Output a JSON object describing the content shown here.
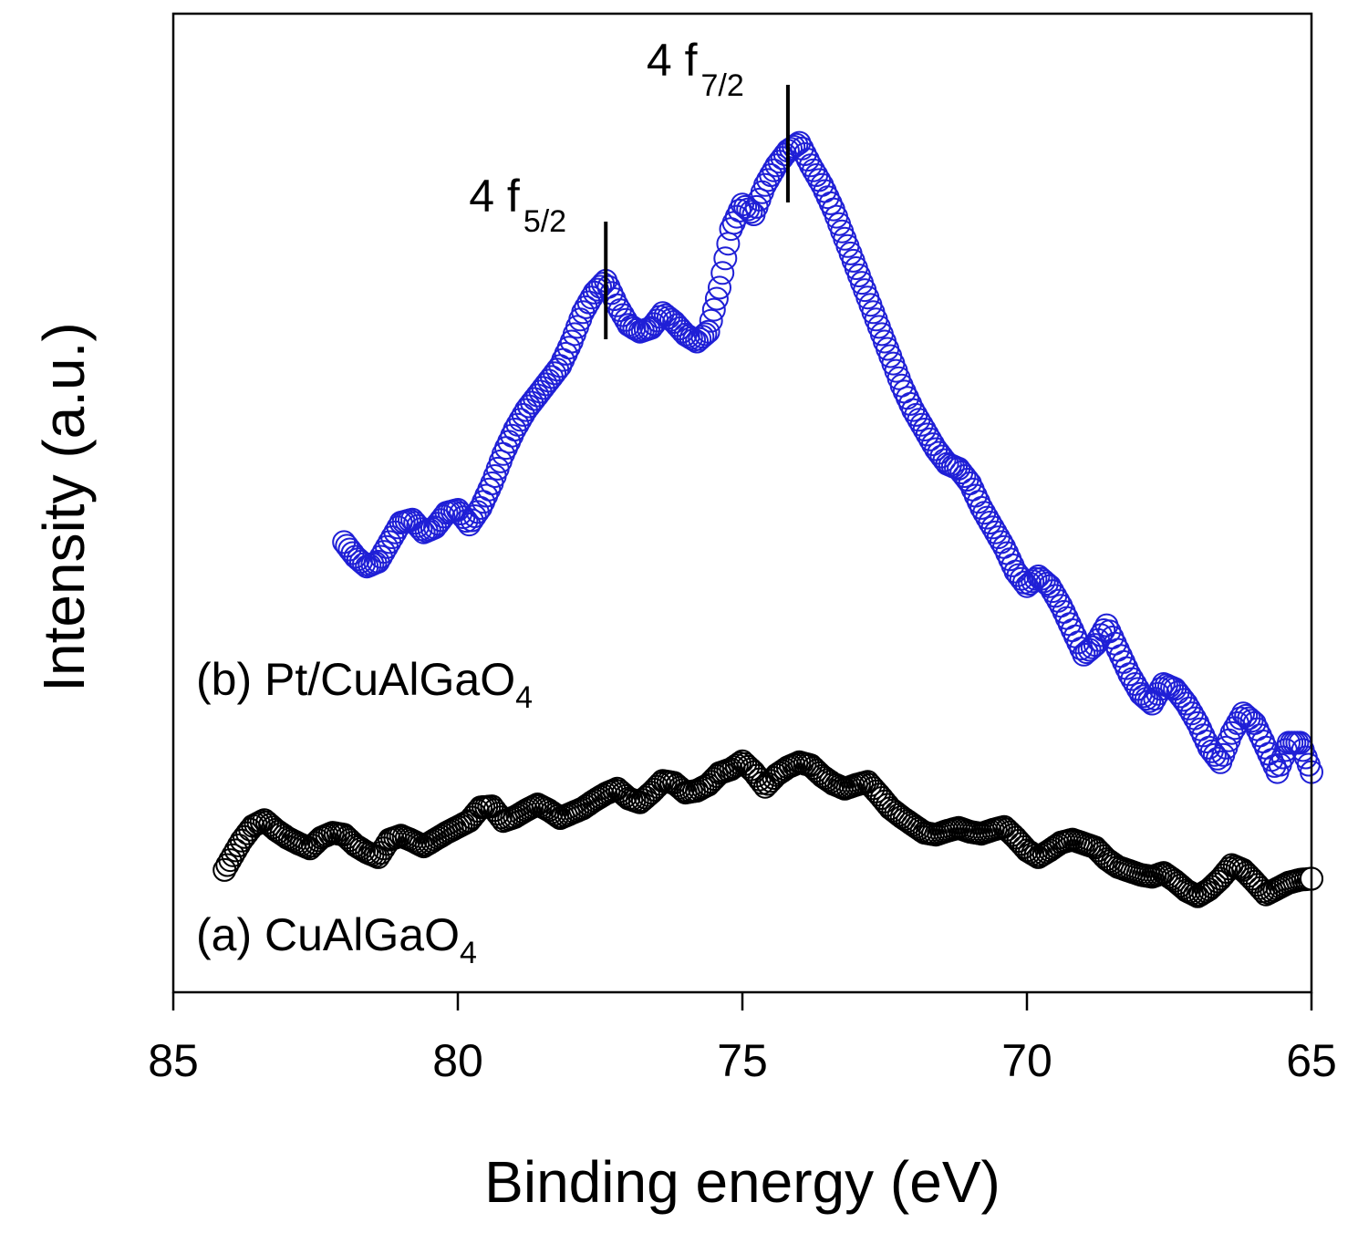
{
  "chart_data": {
    "type": "scatter",
    "title": "",
    "xlabel": "Binding energy (eV)",
    "ylabel": "Intensity (a.u.)",
    "xlim": [
      85,
      65
    ],
    "ylim": [
      0,
      100
    ],
    "x_ticks": [
      "85",
      "80",
      "75",
      "70",
      "65"
    ],
    "x_tick_values": [
      85,
      80,
      75,
      70,
      65
    ],
    "y_ticks_shown": false,
    "grid": false,
    "legend": "none",
    "series": [
      {
        "name": "(a) CuAlGaO4",
        "label_main": "(a) CuAlGaO",
        "label_sub": "4",
        "color": "#000000",
        "marker": "open-circle",
        "points": [
          [
            84.1,
            12.5
          ],
          [
            84.0,
            13.5
          ],
          [
            83.8,
            15.5
          ],
          [
            83.6,
            17.0
          ],
          [
            83.4,
            17.6
          ],
          [
            83.2,
            16.6
          ],
          [
            83.0,
            15.8
          ],
          [
            82.8,
            15.2
          ],
          [
            82.6,
            14.7
          ],
          [
            82.4,
            15.8
          ],
          [
            82.2,
            16.3
          ],
          [
            82.0,
            16.1
          ],
          [
            81.8,
            15.0
          ],
          [
            81.6,
            14.3
          ],
          [
            81.4,
            13.8
          ],
          [
            81.2,
            15.6
          ],
          [
            81.0,
            16.0
          ],
          [
            80.8,
            15.5
          ],
          [
            80.6,
            14.9
          ],
          [
            80.4,
            15.6
          ],
          [
            80.2,
            16.3
          ],
          [
            80.0,
            16.9
          ],
          [
            79.8,
            17.5
          ],
          [
            79.6,
            18.9
          ],
          [
            79.4,
            19.0
          ],
          [
            79.2,
            17.5
          ],
          [
            79.0,
            17.9
          ],
          [
            78.8,
            18.6
          ],
          [
            78.6,
            19.2
          ],
          [
            78.4,
            18.6
          ],
          [
            78.2,
            17.8
          ],
          [
            78.0,
            18.3
          ],
          [
            77.8,
            18.8
          ],
          [
            77.6,
            19.6
          ],
          [
            77.4,
            20.3
          ],
          [
            77.2,
            20.8
          ],
          [
            77.0,
            19.8
          ],
          [
            76.8,
            19.4
          ],
          [
            76.6,
            20.4
          ],
          [
            76.4,
            21.6
          ],
          [
            76.2,
            21.4
          ],
          [
            76.0,
            20.4
          ],
          [
            75.8,
            20.6
          ],
          [
            75.6,
            21.2
          ],
          [
            75.4,
            22.4
          ],
          [
            75.2,
            22.8
          ],
          [
            75.0,
            23.6
          ],
          [
            74.8,
            22.5
          ],
          [
            74.6,
            21.0
          ],
          [
            74.4,
            22.2
          ],
          [
            74.2,
            23.0
          ],
          [
            74.0,
            23.5
          ],
          [
            73.8,
            23.2
          ],
          [
            73.6,
            22.1
          ],
          [
            73.4,
            21.3
          ],
          [
            73.2,
            20.8
          ],
          [
            73.0,
            21.2
          ],
          [
            72.8,
            21.5
          ],
          [
            72.6,
            20.2
          ],
          [
            72.4,
            18.8
          ],
          [
            72.2,
            17.9
          ],
          [
            72.0,
            17.1
          ],
          [
            71.8,
            16.3
          ],
          [
            71.6,
            16.1
          ],
          [
            71.4,
            16.5
          ],
          [
            71.2,
            16.8
          ],
          [
            71.0,
            16.4
          ],
          [
            70.8,
            16.2
          ],
          [
            70.6,
            16.6
          ],
          [
            70.4,
            16.9
          ],
          [
            70.2,
            15.8
          ],
          [
            70.0,
            14.5
          ],
          [
            69.8,
            13.8
          ],
          [
            69.6,
            14.5
          ],
          [
            69.4,
            15.3
          ],
          [
            69.2,
            15.6
          ],
          [
            69.0,
            15.2
          ],
          [
            68.8,
            14.8
          ],
          [
            68.6,
            13.6
          ],
          [
            68.4,
            12.8
          ],
          [
            68.2,
            12.4
          ],
          [
            68.0,
            12.0
          ],
          [
            67.8,
            11.8
          ],
          [
            67.6,
            12.2
          ],
          [
            67.4,
            11.4
          ],
          [
            67.2,
            10.4
          ],
          [
            67.0,
            9.8
          ],
          [
            66.8,
            10.5
          ],
          [
            66.6,
            11.6
          ],
          [
            66.4,
            13.0
          ],
          [
            66.2,
            12.5
          ],
          [
            66.0,
            11.3
          ],
          [
            65.8,
            10.0
          ],
          [
            65.6,
            10.6
          ],
          [
            65.4,
            11.2
          ],
          [
            65.2,
            11.5
          ],
          [
            65.0,
            11.6
          ]
        ]
      },
      {
        "name": "(b) Pt/CuAlGaO4",
        "label_main": "(b) Pt/CuAlGaO",
        "label_sub": "4",
        "color": "#1f1fd6",
        "marker": "open-circle",
        "points": [
          [
            82.0,
            46.0
          ],
          [
            81.8,
            44.5
          ],
          [
            81.6,
            43.5
          ],
          [
            81.4,
            44.0
          ],
          [
            81.2,
            46.0
          ],
          [
            81.0,
            48.0
          ],
          [
            80.8,
            48.3
          ],
          [
            80.6,
            47.0
          ],
          [
            80.4,
            47.5
          ],
          [
            80.2,
            49.0
          ],
          [
            80.0,
            49.3
          ],
          [
            79.8,
            47.8
          ],
          [
            79.6,
            49.5
          ],
          [
            79.4,
            52.0
          ],
          [
            79.2,
            55.0
          ],
          [
            79.0,
            57.5
          ],
          [
            78.8,
            59.5
          ],
          [
            78.6,
            61.0
          ],
          [
            78.4,
            62.5
          ],
          [
            78.2,
            64.0
          ],
          [
            78.0,
            66.5
          ],
          [
            77.8,
            69.5
          ],
          [
            77.6,
            71.5
          ],
          [
            77.4,
            72.7
          ],
          [
            77.2,
            70.2
          ],
          [
            77.0,
            68.2
          ],
          [
            76.8,
            67.5
          ],
          [
            76.6,
            67.9
          ],
          [
            76.4,
            69.4
          ],
          [
            76.2,
            68.5
          ],
          [
            76.0,
            67.2
          ],
          [
            75.8,
            66.5
          ],
          [
            75.6,
            67.5
          ],
          [
            75.4,
            72.0
          ],
          [
            75.2,
            78.0
          ],
          [
            75.0,
            80.5
          ],
          [
            74.8,
            79.5
          ],
          [
            74.6,
            82.5
          ],
          [
            74.4,
            84.5
          ],
          [
            74.2,
            86.0
          ],
          [
            74.0,
            86.8
          ],
          [
            73.8,
            84.5
          ],
          [
            73.6,
            82.5
          ],
          [
            73.4,
            80.0
          ],
          [
            73.2,
            77.0
          ],
          [
            73.0,
            74.0
          ],
          [
            72.8,
            71.0
          ],
          [
            72.6,
            68.0
          ],
          [
            72.4,
            65.0
          ],
          [
            72.2,
            62.0
          ],
          [
            72.0,
            59.5
          ],
          [
            71.8,
            57.5
          ],
          [
            71.6,
            55.5
          ],
          [
            71.4,
            54.0
          ],
          [
            71.2,
            53.5
          ],
          [
            71.0,
            52.0
          ],
          [
            70.8,
            49.5
          ],
          [
            70.6,
            47.5
          ],
          [
            70.4,
            45.5
          ],
          [
            70.2,
            43.0
          ],
          [
            70.0,
            41.5
          ],
          [
            69.8,
            42.5
          ],
          [
            69.6,
            41.5
          ],
          [
            69.4,
            39.5
          ],
          [
            69.2,
            37.0
          ],
          [
            69.0,
            34.5
          ],
          [
            68.8,
            35.5
          ],
          [
            68.6,
            37.5
          ],
          [
            68.4,
            35.0
          ],
          [
            68.2,
            32.5
          ],
          [
            68.0,
            30.5
          ],
          [
            67.8,
            29.5
          ],
          [
            67.6,
            31.5
          ],
          [
            67.4,
            31.0
          ],
          [
            67.2,
            29.5
          ],
          [
            67.0,
            27.5
          ],
          [
            66.8,
            25.0
          ],
          [
            66.6,
            23.5
          ],
          [
            66.4,
            26.5
          ],
          [
            66.2,
            28.5
          ],
          [
            66.0,
            27.5
          ],
          [
            65.8,
            25.0
          ],
          [
            65.6,
            22.5
          ],
          [
            65.4,
            25.5
          ],
          [
            65.2,
            25.5
          ],
          [
            65.0,
            22.5
          ]
        ]
      }
    ],
    "annotations": [
      {
        "main": "4 f",
        "sub": "5/2",
        "x": 77.4
      },
      {
        "main": "4 f",
        "sub": "7/2",
        "x": 74.2
      }
    ]
  }
}
